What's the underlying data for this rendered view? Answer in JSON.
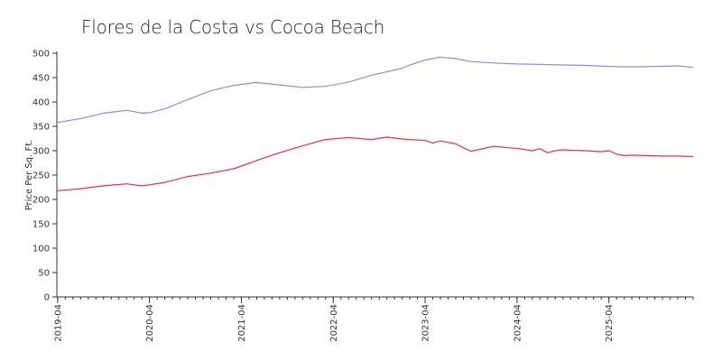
{
  "chart_data": {
    "type": "line",
    "title": "Flores de la Costa vs Cocoa Beach",
    "xlabel": "",
    "ylabel": "Price Per Sq. Ft.",
    "ylim": [
      0,
      500
    ],
    "yticks": [
      0,
      50,
      100,
      150,
      200,
      250,
      300,
      350,
      400,
      450,
      500
    ],
    "xlim": [
      "2019-04",
      "2026-03"
    ],
    "xticks": [
      "2019-04",
      "2020-04",
      "2021-04",
      "2022-04",
      "2023-04",
      "2024-04",
      "2025-04"
    ],
    "grid": false,
    "legend": "none",
    "series": [
      {
        "color": "#8c8cf2",
        "x": [
          "2019-04",
          "2019-07",
          "2019-10",
          "2020-01",
          "2020-03",
          "2020-04",
          "2020-06",
          "2020-09",
          "2020-12",
          "2021-03",
          "2021-06",
          "2021-09",
          "2021-12",
          "2022-03",
          "2022-06",
          "2022-09",
          "2022-11",
          "2023-01",
          "2023-02",
          "2023-04",
          "2023-06",
          "2023-08",
          "2023-10",
          "2024-01",
          "2024-04",
          "2024-07",
          "2024-10",
          "2025-01",
          "2025-04",
          "2025-07",
          "2025-10",
          "2026-01",
          "2026-03"
        ],
        "y": [
          358,
          366,
          377,
          383,
          377,
          378,
          386,
          405,
          423,
          434,
          440,
          435,
          430,
          432,
          441,
          455,
          462,
          469,
          476,
          486,
          492,
          489,
          483,
          480,
          478,
          477,
          476,
          475,
          473,
          472,
          473,
          474,
          471
        ]
      },
      {
        "color": "#e8323c",
        "x": [
          "2019-04",
          "2019-07",
          "2019-10",
          "2020-01",
          "2020-03",
          "2020-04",
          "2020-06",
          "2020-09",
          "2020-12",
          "2021-03",
          "2021-06",
          "2021-09",
          "2021-12",
          "2022-03",
          "2022-06",
          "2022-09",
          "2022-11",
          "2023-01",
          "2023-03",
          "2023-04",
          "2023-05",
          "2023-06",
          "2023-08",
          "2023-09",
          "2023-10",
          "2024-01",
          "2024-03",
          "2024-04",
          "2024-06",
          "2024-07",
          "2024-08",
          "2024-09",
          "2024-10",
          "2024-11",
          "2025-01",
          "2025-03",
          "2025-04",
          "2025-05",
          "2025-06",
          "2025-07",
          "2025-09",
          "2025-11",
          "2026-01",
          "2026-03"
        ],
        "y": [
          218,
          222,
          228,
          232,
          228,
          230,
          235,
          247,
          254,
          263,
          280,
          296,
          310,
          323,
          327,
          323,
          328,
          324,
          322,
          321,
          316,
          320,
          314,
          306,
          299,
          309,
          306,
          305,
          300,
          304,
          296,
          300,
          302,
          301,
          300,
          298,
          300,
          293,
          290,
          291,
          290,
          289,
          289,
          288
        ]
      }
    ]
  }
}
